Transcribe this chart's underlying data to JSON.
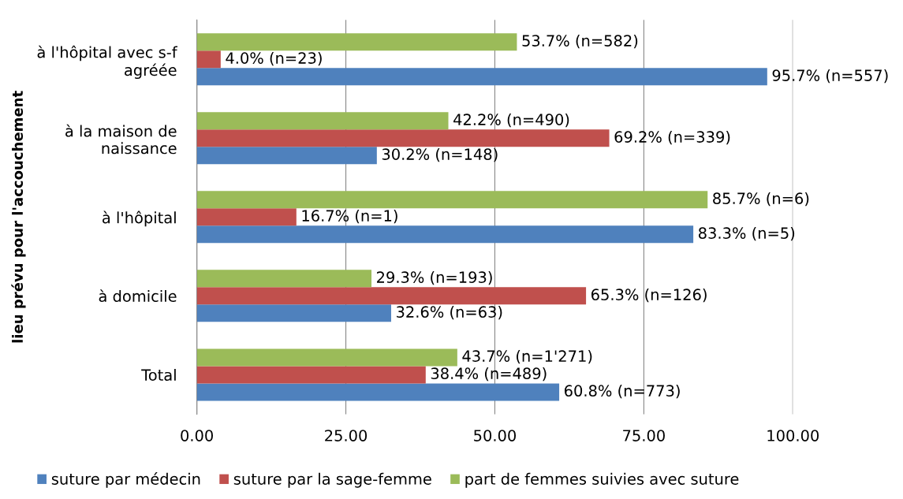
{
  "chart_data": {
    "type": "bar",
    "orientation": "horizontal",
    "ylabel": "lieu prévu pour l'accouchement",
    "categories": [
      "à l'hôpital avec s-f\nagréée",
      "à la maison de\nnaissance",
      "à l'hôpital",
      "à domicile",
      "Total"
    ],
    "series": [
      {
        "name": "suture par médecin",
        "color": "#4f81bd",
        "values": [
          95.7,
          30.2,
          83.3,
          32.6,
          60.8
        ],
        "value_labels": [
          "95.7% (n=557)",
          "30.2% (n=148)",
          "83.3% (n=5)",
          "32.6% (n=63)",
          "60.8% (n=773)"
        ]
      },
      {
        "name": "suture par la sage-femme",
        "color": "#c0504d",
        "values": [
          4.0,
          69.2,
          16.7,
          65.3,
          38.4
        ],
        "value_labels": [
          "4.0% (n=23)",
          "69.2% (n=339)",
          "16.7% (n=1)",
          "65.3% (n=126)",
          "38.4% (n=489)"
        ]
      },
      {
        "name": "part de femmes suivies avec suture",
        "color": "#9bbb59",
        "values": [
          53.7,
          42.2,
          85.7,
          29.3,
          43.7
        ],
        "value_labels": [
          "53.7% (n=582)",
          "42.2% (n=490)",
          "85.7% (n=6)",
          "29.3% (n=193)",
          "43.7% (n=1'271)"
        ]
      }
    ],
    "xlim": [
      0,
      100
    ],
    "xticks": [
      {
        "value": 0,
        "label": "0.00"
      },
      {
        "value": 25,
        "label": "25.00"
      },
      {
        "value": 50,
        "label": "50.00"
      },
      {
        "value": 75,
        "label": "75.00"
      },
      {
        "value": 100,
        "label": "100.00"
      }
    ],
    "grid": "x",
    "legend": "bottom"
  }
}
